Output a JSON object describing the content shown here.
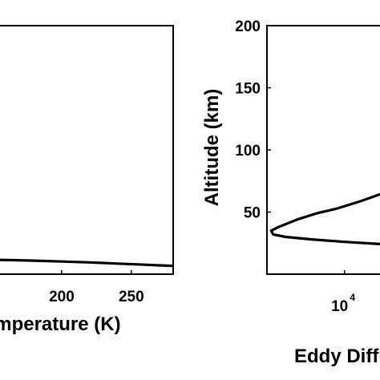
{
  "chart_data": [
    {
      "type": "line",
      "xlabel": "Temperature (K)",
      "ylabel": "",
      "xlim": [
        150,
        280
      ],
      "ylim": [
        0,
        200
      ],
      "x_ticks": [
        {
          "value": 200,
          "label": "200"
        },
        {
          "value": 250,
          "label": "250"
        }
      ],
      "y_ticks": [],
      "grid": false,
      "series": [
        {
          "x": [
            150,
            155,
            165,
            180,
            200,
            220,
            240,
            260,
            270,
            280
          ],
          "y": [
            12,
            11.5,
            11.3,
            10.9,
            10.2,
            9.5,
            8.5,
            7.6,
            7.1,
            6.7
          ]
        }
      ]
    },
    {
      "type": "line",
      "xlabel": "Eddy Diffusion",
      "ylabel": "Altitude (km)",
      "xscale": "log",
      "xlim": [
        3000,
        22000
      ],
      "ylim": [
        0,
        200
      ],
      "x_ticks": [
        {
          "value": 10000,
          "base": "10",
          "exponent": "4"
        }
      ],
      "y_ticks": [
        {
          "value": 50,
          "label": "50"
        },
        {
          "value": 100,
          "label": "100"
        },
        {
          "value": 150,
          "label": "150"
        },
        {
          "value": 200,
          "label": "200"
        }
      ],
      "grid": false,
      "series": [
        {
          "x": [
            22000,
            18000,
            13000,
            9000,
            6500,
            4800,
            3600,
            3200,
            3300,
            4000,
            6000,
            10000,
            16000,
            22000
          ],
          "y": [
            70,
            65,
            59,
            53,
            49,
            44,
            38,
            35,
            32,
            30,
            28,
            26,
            24.5,
            23.5
          ]
        }
      ]
    }
  ]
}
